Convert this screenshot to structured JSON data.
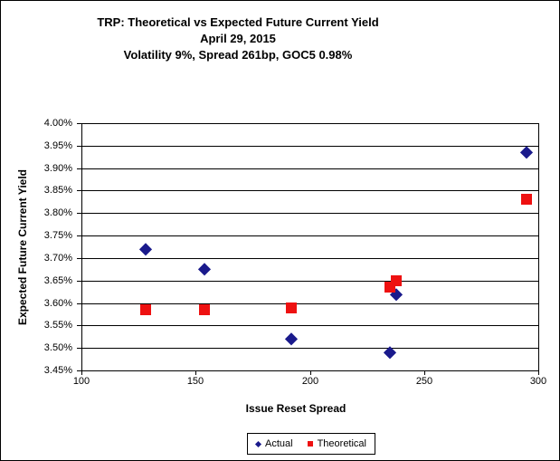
{
  "chart_data": {
    "type": "scatter",
    "title": "TRP: Theoretical vs Expected Future Current Yield",
    "subtitle": "April 29, 2015",
    "subtitle2": "Volatility 9%, Spread 261bp, GOC5 0.98%",
    "xlabel": "Issue Reset Spread",
    "ylabel": "Expected Future Current Yield",
    "xlim": [
      100,
      300
    ],
    "ylim": [
      3.45,
      4.0
    ],
    "x_ticks": [
      "100",
      "150",
      "200",
      "250",
      "300"
    ],
    "y_ticks": [
      "4.00%",
      "3.95%",
      "3.90%",
      "3.85%",
      "3.80%",
      "3.75%",
      "3.70%",
      "3.65%",
      "3.60%",
      "3.55%",
      "3.50%",
      "3.45%"
    ],
    "grid": "horizontal gridlines only, black",
    "legend_position": "bottom center, boxed",
    "plot_border_color": "#000000",
    "background_color": "#ffffff",
    "series": [
      {
        "name": "Actual",
        "marker": "diamond",
        "color": "#1a1a8c",
        "points": [
          [
            128,
            3.72
          ],
          [
            154,
            3.675
          ],
          [
            192,
            3.52
          ],
          [
            235,
            3.49
          ],
          [
            238,
            3.62
          ],
          [
            295,
            3.935
          ]
        ]
      },
      {
        "name": "Theoretical",
        "marker": "square",
        "color": "#ee1111",
        "points": [
          [
            128,
            3.585
          ],
          [
            154,
            3.585
          ],
          [
            192,
            3.59
          ],
          [
            235,
            3.635
          ],
          [
            238,
            3.65
          ],
          [
            295,
            3.83
          ]
        ]
      }
    ]
  }
}
